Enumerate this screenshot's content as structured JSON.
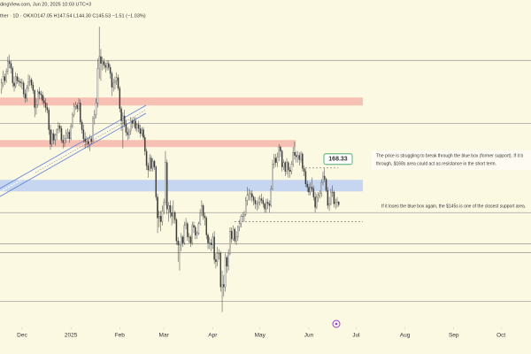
{
  "chart_data": {
    "type": "candlestick",
    "subtitle": "dingView.com, Jun 20, 2025 10:03 UTC+3",
    "title": "ther · 1D · OKX",
    "readout": "O147.05 H147.54 L144.30 C145.53 −1.51 (−1.03%)",
    "log_scale": true,
    "ylim": [
      90,
      328
    ],
    "xlim": [
      -1,
      336
    ],
    "xticks": [
      {
        "value": 13,
        "label": "Dec"
      },
      {
        "value": 44,
        "label": "2025"
      },
      {
        "value": 75,
        "label": "Feb"
      },
      {
        "value": 103,
        "label": "Mar"
      },
      {
        "value": 134,
        "label": "Apr"
      },
      {
        "value": 164,
        "label": "May"
      },
      {
        "value": 195,
        "label": "Jun"
      },
      {
        "value": 225,
        "label": "Jul"
      },
      {
        "value": 256,
        "label": "Aug"
      },
      {
        "value": 287,
        "label": "Sep"
      },
      {
        "value": 317,
        "label": "Oct"
      }
    ],
    "up_color": "#f7f7f2",
    "down_color": "#3a3a3a",
    "open": [
      230,
      236,
      242,
      238,
      247,
      257,
      255,
      250,
      236,
      233,
      242,
      238,
      237,
      236,
      236,
      226,
      222,
      231,
      237,
      239,
      234,
      229,
      214,
      216,
      228,
      226,
      225,
      220,
      218,
      214,
      212,
      196,
      185,
      193,
      188,
      192,
      196,
      199,
      197,
      188,
      186,
      189,
      193,
      194,
      189,
      199,
      208,
      215,
      216,
      213,
      218,
      202,
      196,
      189,
      187,
      187,
      185,
      189,
      187,
      205,
      208,
      218,
      250,
      262,
      255,
      257,
      253,
      251,
      255,
      251,
      245,
      232,
      236,
      238,
      241,
      231,
      213,
      203,
      207,
      200,
      194,
      192,
      195,
      203,
      201,
      203,
      197,
      200,
      197,
      193,
      196,
      190,
      180,
      170,
      167,
      175,
      168,
      173,
      169,
      150,
      138,
      139,
      136,
      142,
      147,
      172,
      143,
      145,
      141,
      139,
      141,
      137,
      126,
      124,
      124,
      128,
      125,
      134,
      135,
      128,
      128,
      125,
      134,
      133,
      129,
      130,
      135,
      141,
      145,
      139,
      138,
      129,
      125,
      125,
      124,
      128,
      117,
      116,
      120,
      120,
      105,
      106,
      105,
      118,
      114,
      120,
      131,
      127,
      132,
      126,
      128,
      133,
      135,
      139,
      139,
      140,
      148,
      151,
      152,
      152,
      150,
      148,
      146,
      146,
      147,
      149,
      148,
      146,
      143,
      147,
      146,
      145,
      155,
      171,
      175,
      172,
      176,
      183,
      180,
      169,
      172,
      166,
      172,
      167,
      166,
      171,
      179,
      177,
      176,
      177,
      174,
      178,
      168,
      166,
      158,
      156,
      153,
      156,
      155,
      150,
      144,
      150,
      151,
      152,
      159,
      163,
      161,
      154,
      145,
      146,
      153,
      153,
      146,
      147,
      147.05
    ],
    "high": [
      240,
      248,
      245,
      250,
      262,
      264,
      258,
      252,
      242,
      246,
      245,
      241,
      240,
      240,
      238,
      230,
      234,
      244,
      243,
      241,
      237,
      230,
      222,
      230,
      232,
      229,
      228,
      224,
      222,
      218,
      214,
      200,
      196,
      196,
      193,
      197,
      202,
      201,
      199,
      192,
      192,
      196,
      197,
      196,
      201,
      210,
      218,
      219,
      218,
      222,
      221,
      204,
      200,
      194,
      191,
      190,
      192,
      191,
      207,
      212,
      222,
      260,
      295,
      270,
      262,
      260,
      256,
      258,
      258,
      254,
      247,
      240,
      242,
      246,
      244,
      233,
      215,
      210,
      212,
      204,
      198,
      197,
      206,
      205,
      206,
      206,
      201,
      203,
      200,
      198,
      198,
      192,
      182,
      172,
      178,
      177,
      175,
      174,
      170,
      152,
      142,
      142,
      145,
      149,
      180,
      174,
      147,
      148,
      145,
      148,
      142,
      138,
      128,
      126,
      130,
      129,
      136,
      138,
      136,
      130,
      129,
      136,
      136,
      134,
      131,
      136,
      143,
      148,
      146,
      141,
      139,
      130,
      128,
      127,
      130,
      131,
      120,
      123,
      122,
      121,
      112,
      110,
      120,
      119,
      122,
      133,
      133,
      134,
      133,
      131,
      134,
      137,
      140,
      141,
      142,
      150,
      156,
      155,
      154,
      154,
      151,
      150,
      148,
      150,
      151,
      152,
      150,
      147,
      149,
      149,
      148,
      157,
      174,
      178,
      178,
      179,
      185,
      184,
      181,
      174,
      173,
      175,
      173,
      169,
      173,
      183,
      187,
      180,
      180,
      179,
      180,
      179,
      170,
      168,
      160,
      158,
      159,
      162,
      157,
      153,
      152,
      153,
      154,
      161,
      166,
      168,
      162,
      156,
      150,
      155,
      157,
      154,
      149,
      150,
      147.54
    ],
    "low": [
      226,
      232,
      234,
      236,
      244,
      250,
      245,
      232,
      228,
      231,
      235,
      233,
      232,
      230,
      223,
      218,
      219,
      228,
      233,
      231,
      226,
      206,
      208,
      214,
      221,
      221,
      217,
      214,
      210,
      209,
      192,
      181,
      183,
      185,
      184,
      188,
      193,
      194,
      186,
      182,
      183,
      186,
      189,
      186,
      188,
      197,
      206,
      212,
      210,
      211,
      200,
      193,
      186,
      182,
      184,
      182,
      180,
      185,
      186,
      200,
      205,
      214,
      240,
      238,
      248,
      249,
      246,
      248,
      248,
      240,
      224,
      228,
      230,
      234,
      229,
      210,
      195,
      182,
      198,
      191,
      188,
      189,
      192,
      197,
      198,
      195,
      194,
      194,
      190,
      191,
      188,
      177,
      167,
      162,
      166,
      166,
      166,
      167,
      148,
      130,
      133,
      131,
      134,
      140,
      145,
      140,
      136,
      138,
      134,
      135,
      135,
      124,
      116,
      112,
      121,
      123,
      124,
      132,
      126,
      125,
      123,
      124,
      130,
      127,
      127,
      129,
      134,
      139,
      137,
      134,
      127,
      122,
      122,
      121,
      122,
      115,
      113,
      114,
      117,
      103,
      95,
      101,
      103,
      111,
      112,
      119,
      125,
      126,
      125,
      124,
      126,
      131,
      133,
      136,
      136,
      139,
      145,
      148,
      148,
      147,
      145,
      143,
      142,
      143,
      145,
      146,
      144,
      141,
      141,
      143,
      141,
      144,
      154,
      168,
      169,
      169,
      173,
      176,
      166,
      167,
      163,
      164,
      162,
      162,
      164,
      169,
      174,
      172,
      172,
      170,
      172,
      166,
      163,
      156,
      153,
      151,
      151,
      153,
      148,
      141,
      143,
      147,
      149,
      150,
      157,
      159,
      153,
      143,
      142,
      145,
      150,
      144,
      143,
      144,
      144.3
    ],
    "close": [
      236,
      242,
      238,
      247,
      257,
      255,
      250,
      236,
      233,
      242,
      238,
      237,
      236,
      236,
      226,
      222,
      231,
      237,
      239,
      234,
      229,
      214,
      216,
      228,
      226,
      225,
      220,
      218,
      214,
      212,
      196,
      185,
      193,
      188,
      192,
      196,
      199,
      197,
      188,
      186,
      189,
      193,
      194,
      189,
      199,
      208,
      215,
      216,
      213,
      218,
      202,
      196,
      189,
      187,
      187,
      185,
      189,
      187,
      205,
      208,
      218,
      250,
      262,
      255,
      257,
      253,
      251,
      255,
      251,
      245,
      232,
      236,
      238,
      241,
      231,
      213,
      203,
      207,
      200,
      194,
      192,
      195,
      203,
      201,
      203,
      197,
      200,
      197,
      193,
      196,
      190,
      180,
      170,
      167,
      175,
      168,
      173,
      169,
      150,
      138,
      139,
      136,
      142,
      147,
      172,
      143,
      145,
      141,
      139,
      141,
      137,
      126,
      124,
      124,
      128,
      125,
      134,
      135,
      128,
      128,
      125,
      134,
      133,
      129,
      130,
      135,
      141,
      145,
      139,
      138,
      129,
      125,
      125,
      124,
      128,
      117,
      116,
      120,
      120,
      105,
      106,
      105,
      118,
      114,
      120,
      131,
      127,
      132,
      126,
      128,
      133,
      135,
      139,
      139,
      140,
      148,
      151,
      152,
      152,
      150,
      148,
      146,
      146,
      147,
      149,
      148,
      146,
      143,
      147,
      146,
      145,
      155,
      171,
      175,
      172,
      176,
      183,
      180,
      169,
      172,
      166,
      172,
      167,
      166,
      171,
      179,
      177,
      176,
      177,
      174,
      178,
      168,
      166,
      158,
      156,
      153,
      156,
      155,
      150,
      144,
      150,
      151,
      152,
      159,
      163,
      161,
      154,
      145,
      146,
      153,
      153,
      146,
      147,
      147.05,
      145.53
    ],
    "levels": [
      258,
      201,
      141,
      124.6,
      120.3,
      99.1
    ],
    "level_color": "#a3a39a",
    "zones": [
      {
        "low": 215.7,
        "high": 222.7,
        "color": "#f6b6ab"
      },
      {
        "low": 182.9,
        "high": 188.1,
        "color": "#f6b6ab"
      },
      {
        "low": 153.4,
        "high": 160.6,
        "color": "#bcd0f2"
      }
    ],
    "dashed_levels": [
      168.33,
      136.1
    ],
    "annotations": [
      "The price is struggling to break through the blue box (former support). If it b",
      "through, $168s area could act as resistance in the short term.",
      "If it loses the blue box again, the $145s is one of the closest support area."
    ]
  }
}
